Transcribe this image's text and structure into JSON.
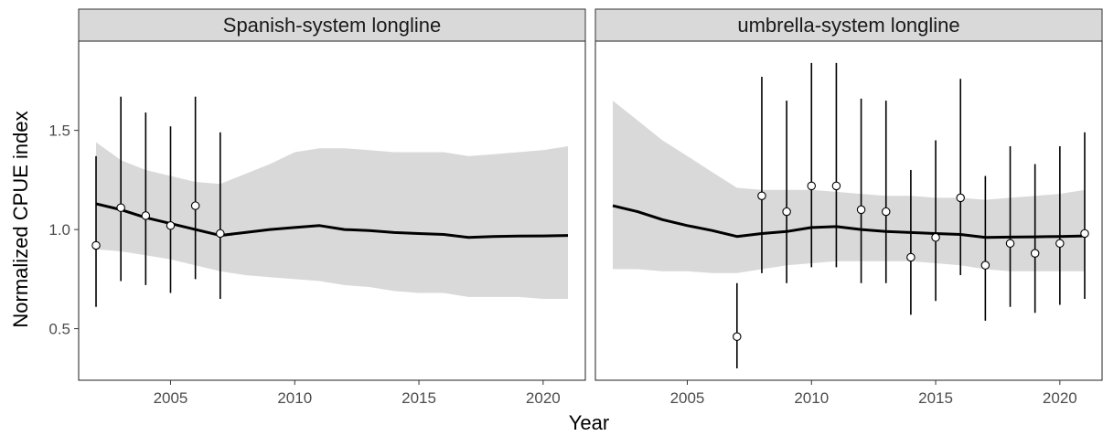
{
  "chart_data": {
    "type": "line",
    "xlabel": "Year",
    "ylabel": "Normalized CPUE index",
    "xlim": [
      2001.3,
      2021.7
    ],
    "ylim": [
      0.24,
      1.95
    ],
    "x_ticks": [
      2005,
      2010,
      2015,
      2020
    ],
    "y_ticks": [
      0.5,
      1.0,
      1.5
    ],
    "x_tick_labels": [
      "2005",
      "2010",
      "2015",
      "2020"
    ],
    "y_tick_labels": [
      "0.5",
      "1.0",
      "1.5"
    ],
    "grid": false,
    "colors": {
      "ribbon": "#d9d9d9",
      "line": "#000000",
      "point_fill": "#ffffff",
      "strip_bg": "#d9d9d9",
      "border": "#333333"
    },
    "panels": [
      {
        "title": "Spanish-system longline",
        "trend": {
          "x": [
            2002,
            2003,
            2004,
            2005,
            2006,
            2007,
            2008,
            2009,
            2010,
            2011,
            2012,
            2013,
            2014,
            2015,
            2016,
            2017,
            2018,
            2019,
            2020,
            2021
          ],
          "y": [
            1.13,
            1.1,
            1.06,
            1.03,
            1.0,
            0.97,
            0.985,
            1.0,
            1.01,
            1.02,
            1.0,
            0.995,
            0.985,
            0.98,
            0.975,
            0.96,
            0.965,
            0.967,
            0.968,
            0.97
          ],
          "lower": [
            0.9,
            0.89,
            0.87,
            0.85,
            0.82,
            0.79,
            0.77,
            0.76,
            0.75,
            0.74,
            0.72,
            0.71,
            0.69,
            0.68,
            0.68,
            0.66,
            0.66,
            0.66,
            0.65,
            0.65
          ],
          "upper": [
            1.44,
            1.35,
            1.3,
            1.27,
            1.24,
            1.23,
            1.28,
            1.33,
            1.39,
            1.41,
            1.41,
            1.4,
            1.39,
            1.39,
            1.39,
            1.37,
            1.38,
            1.39,
            1.4,
            1.42
          ]
        },
        "observations": {
          "x": [
            2002,
            2003,
            2004,
            2005,
            2006,
            2007
          ],
          "y": [
            0.92,
            1.11,
            1.07,
            1.02,
            1.12,
            0.98
          ],
          "lower": [
            0.61,
            0.74,
            0.72,
            0.68,
            0.75,
            0.65
          ],
          "upper": [
            1.37,
            1.67,
            1.59,
            1.52,
            1.67,
            1.49
          ]
        }
      },
      {
        "title": "umbrella-system longline",
        "trend": {
          "x": [
            2002,
            2003,
            2004,
            2005,
            2006,
            2007,
            2008,
            2009,
            2010,
            2011,
            2012,
            2013,
            2014,
            2015,
            2016,
            2017,
            2018,
            2019,
            2020,
            2021
          ],
          "y": [
            1.12,
            1.09,
            1.05,
            1.02,
            0.995,
            0.965,
            0.98,
            0.99,
            1.01,
            1.015,
            1.0,
            0.99,
            0.985,
            0.98,
            0.975,
            0.96,
            0.962,
            0.963,
            0.965,
            0.968
          ],
          "lower": [
            0.8,
            0.8,
            0.79,
            0.79,
            0.78,
            0.78,
            0.8,
            0.82,
            0.83,
            0.84,
            0.84,
            0.84,
            0.84,
            0.83,
            0.82,
            0.8,
            0.79,
            0.79,
            0.79,
            0.79
          ],
          "upper": [
            1.65,
            1.55,
            1.45,
            1.37,
            1.29,
            1.21,
            1.2,
            1.2,
            1.2,
            1.19,
            1.18,
            1.17,
            1.17,
            1.16,
            1.16,
            1.15,
            1.16,
            1.17,
            1.18,
            1.2
          ]
        },
        "observations": {
          "x": [
            2007,
            2008,
            2009,
            2010,
            2011,
            2012,
            2013,
            2014,
            2015,
            2016,
            2017,
            2018,
            2019,
            2020,
            2021
          ],
          "y": [
            0.46,
            1.17,
            1.09,
            1.22,
            1.22,
            1.1,
            1.09,
            0.86,
            0.96,
            1.16,
            0.82,
            0.93,
            0.88,
            0.93,
            0.98
          ],
          "lower": [
            0.3,
            0.78,
            0.73,
            0.81,
            0.81,
            0.73,
            0.73,
            0.57,
            0.64,
            0.77,
            0.54,
            0.61,
            0.58,
            0.62,
            0.65
          ],
          "upper": [
            0.73,
            1.77,
            1.65,
            1.84,
            1.84,
            1.66,
            1.65,
            1.3,
            1.45,
            1.76,
            1.27,
            1.42,
            1.33,
            1.42,
            1.49
          ]
        }
      }
    ]
  }
}
